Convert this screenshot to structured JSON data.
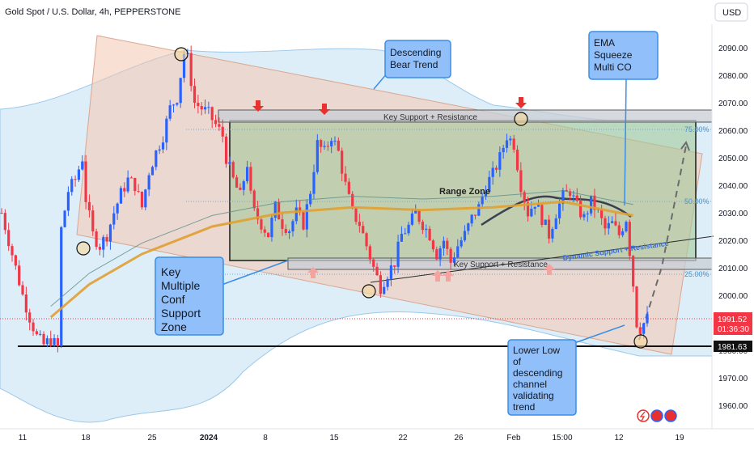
{
  "header": {
    "title": "Gold Spot / U.S. Dollar, 4h, PEPPERSTONE",
    "currency_button": "USD"
  },
  "chart_data": {
    "type": "candlestick",
    "title": "Gold Spot / U.S. Dollar, 4h, PEPPERSTONE",
    "currency": "USD",
    "y_axis": {
      "ticks": [
        2090,
        2080,
        2070,
        2060,
        2050,
        2040,
        2030,
        2020,
        2010,
        2000,
        1990,
        1980,
        1970,
        1960
      ],
      "tick_labels": [
        "2090.00",
        "2080.00",
        "2070.00",
        "2060.00",
        "2050.00",
        "2040.00",
        "2030.00",
        "2020.00",
        "2010.00",
        "2000.00",
        "1990.00",
        "1980.00",
        "1970.00",
        "1960.00"
      ],
      "ylim": [
        1956,
        2099
      ]
    },
    "x_axis": {
      "tick_labels": [
        "11",
        "18",
        "25",
        "2024",
        "8",
        "15",
        "22",
        "26",
        "Feb",
        "15:00",
        "12",
        "19"
      ]
    },
    "price_close_path": [
      [
        0,
        2030
      ],
      [
        3,
        2015
      ],
      [
        6,
        2000
      ],
      [
        8,
        1992
      ],
      [
        10,
        1985
      ],
      [
        12,
        1982
      ],
      [
        14,
        1984
      ],
      [
        16,
        1981
      ],
      [
        17,
        2024
      ],
      [
        19,
        2038
      ],
      [
        21,
        2042
      ],
      [
        23,
        2050
      ],
      [
        24,
        2035
      ],
      [
        26,
        2022
      ],
      [
        28,
        2018
      ],
      [
        30,
        2022
      ],
      [
        32,
        2030
      ],
      [
        34,
        2037
      ],
      [
        36,
        2042
      ],
      [
        38,
        2040
      ],
      [
        40,
        2032
      ],
      [
        42,
        2045
      ],
      [
        44,
        2052
      ],
      [
        46,
        2058
      ],
      [
        48,
        2068
      ],
      [
        50,
        2072
      ],
      [
        52,
        2088
      ],
      [
        53,
        2086
      ],
      [
        55,
        2070
      ],
      [
        57,
        2068
      ],
      [
        59,
        2066
      ],
      [
        61,
        2062
      ],
      [
        63,
        2058
      ],
      [
        64,
        2050
      ],
      [
        66,
        2042
      ],
      [
        68,
        2036
      ],
      [
        70,
        2048
      ],
      [
        71,
        2036
      ],
      [
        72,
        2030
      ],
      [
        74,
        2026
      ],
      [
        76,
        2022
      ],
      [
        78,
        2032
      ],
      [
        80,
        2026
      ],
      [
        82,
        2024
      ],
      [
        84,
        2030
      ],
      [
        86,
        2026
      ],
      [
        88,
        2038
      ],
      [
        90,
        2055
      ],
      [
        92,
        2052
      ],
      [
        94,
        2058
      ],
      [
        96,
        2052
      ],
      [
        98,
        2040
      ],
      [
        100,
        2030
      ],
      [
        102,
        2026
      ],
      [
        104,
        2018
      ],
      [
        106,
        2010
      ],
      [
        108,
        2003
      ],
      [
        110,
        2008
      ],
      [
        112,
        2012
      ],
      [
        114,
        2022
      ],
      [
        116,
        2025
      ],
      [
        118,
        2030
      ],
      [
        120,
        2026
      ],
      [
        122,
        2022
      ],
      [
        124,
        2015
      ],
      [
        126,
        2020
      ],
      [
        128,
        2012
      ],
      [
        130,
        2018
      ],
      [
        132,
        2022
      ],
      [
        134,
        2028
      ],
      [
        136,
        2032
      ],
      [
        138,
        2040
      ],
      [
        140,
        2044
      ],
      [
        142,
        2050
      ],
      [
        144,
        2058
      ],
      [
        146,
        2055
      ],
      [
        148,
        2040
      ],
      [
        150,
        2030
      ],
      [
        152,
        2034
      ],
      [
        154,
        2028
      ],
      [
        156,
        2022
      ],
      [
        158,
        2030
      ],
      [
        160,
        2036
      ],
      [
        162,
        2038
      ],
      [
        164,
        2032
      ],
      [
        166,
        2028
      ],
      [
        168,
        2034
      ],
      [
        170,
        2030
      ],
      [
        172,
        2024
      ],
      [
        174,
        2026
      ],
      [
        176,
        2022
      ],
      [
        178,
        2028
      ],
      [
        180,
        2004
      ],
      [
        181,
        1990
      ],
      [
        182,
        1988
      ],
      [
        184,
        1991.52
      ]
    ],
    "ema": [
      [
        14,
        1992
      ],
      [
        25,
        2004
      ],
      [
        40,
        2015
      ],
      [
        60,
        2025
      ],
      [
        80,
        2030
      ],
      [
        100,
        2032
      ],
      [
        120,
        2031
      ],
      [
        140,
        2032
      ],
      [
        160,
        2034
      ],
      [
        180,
        2029
      ]
    ],
    "levels": {
      "last_price": "1991.52",
      "countdown": "01:36:30",
      "support_line": "1981.63"
    },
    "fib_labels": [
      "75.00%",
      "50.00%",
      "25.00%"
    ],
    "zones": {
      "range_zone_label": "Range Zone",
      "key_level_top_label": "Key Support + Resistance",
      "key_level_bottom_label": "Key Support + Resistance",
      "dynamic_label": "Dynamic Support + Resistance"
    },
    "annotations": [
      {
        "id": "descending",
        "text": [
          "Descending",
          "Bear Trend"
        ]
      },
      {
        "id": "ema-squeeze",
        "text": [
          "EMA",
          "Squeeze",
          "Multi CO"
        ]
      },
      {
        "id": "key-multiple",
        "text": [
          "Key",
          "Multiple",
          "Conf",
          "Support",
          "Zone"
        ]
      },
      {
        "id": "lower-low",
        "text": [
          "Lower  Low",
          "of",
          "descending",
          "channel",
          "validating",
          "trend"
        ]
      }
    ],
    "colors": {
      "up": "#2962ff",
      "down": "#f23645",
      "ema": "#e0a030",
      "range_fill": "#a5c99a",
      "channel_fill": "#f4c7b0",
      "band_fill": "#cfe7f7",
      "callout_fill": "#90bff9",
      "callout_border": "#3a8ee6",
      "marker_red": "#e8312f",
      "marker_pink": "#f4a3a0",
      "circle_fill": "#f6d89b"
    },
    "grid": false
  }
}
